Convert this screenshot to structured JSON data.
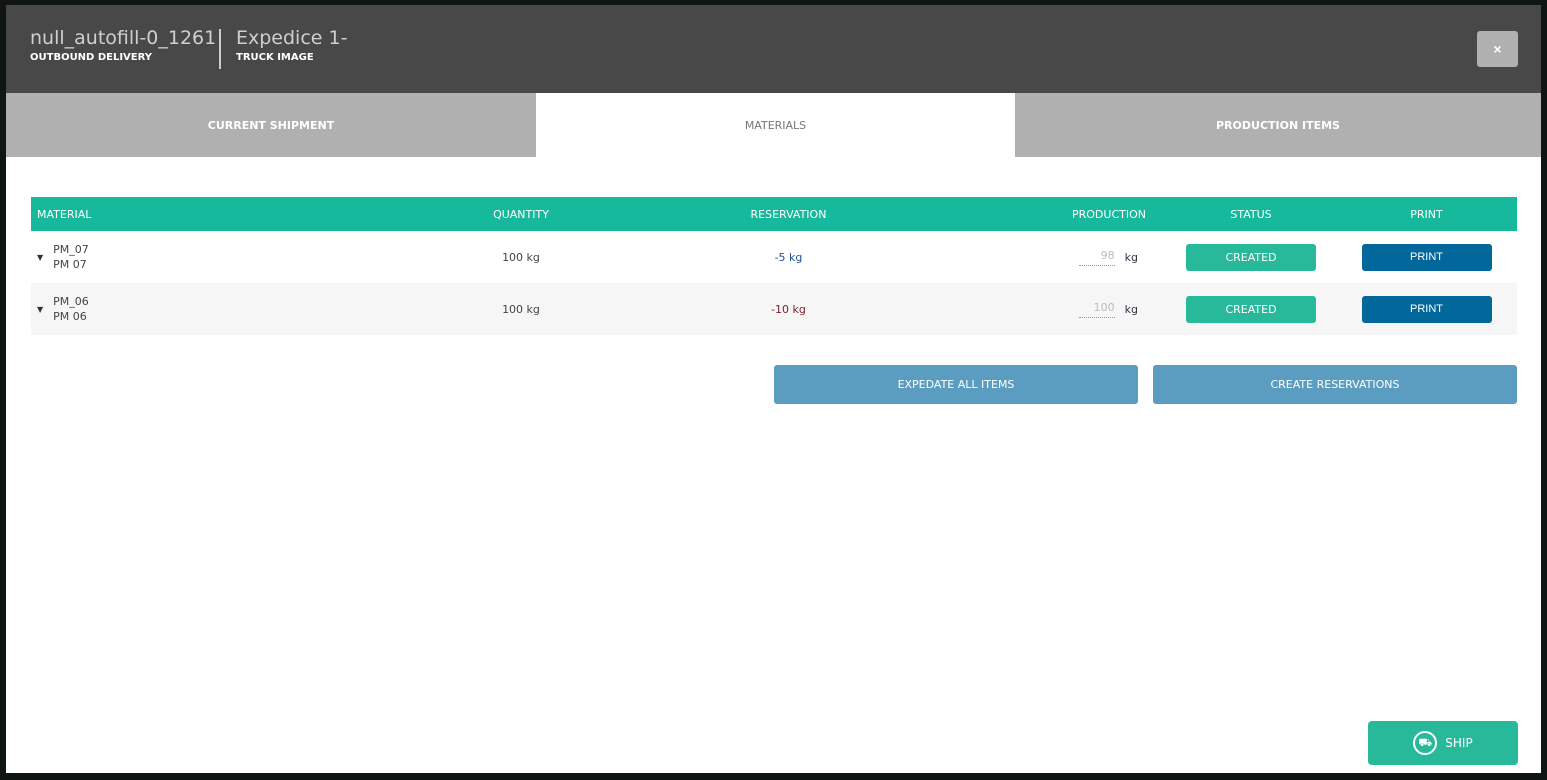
{
  "header": {
    "title": "null_autofill-0_1261",
    "subtitle": "OUTBOUND DELIVERY",
    "title2": "Expedice 1-",
    "subtitle2": "TRUCK IMAGE",
    "close_label": "×"
  },
  "tabs": [
    {
      "label": "CURRENT SHIPMENT"
    },
    {
      "label": "MATERIALS",
      "active": true
    },
    {
      "label": "PRODUCTION ITEMS"
    }
  ],
  "table": {
    "columns": [
      "MATERIAL",
      "QUANTITY",
      "RESERVATION",
      "PRODUCTION",
      "STATUS",
      "PRINT"
    ],
    "rows": [
      {
        "code": "PM_07",
        "name": "PM 07",
        "quantity": "100 kg",
        "reservation": "-5 kg",
        "reservation_color": "#1f4f9c",
        "production": "98",
        "unit": "kg",
        "status": "CREATED",
        "print": "PRINT"
      },
      {
        "code": "PM_06",
        "name": "PM 06",
        "quantity": "100 kg",
        "reservation": "-10 kg",
        "reservation_color": "#7a1f2b",
        "production": "100",
        "unit": "kg",
        "status": "CREATED",
        "print": "PRINT"
      }
    ]
  },
  "actions": {
    "expedate": "EXPEDATE ALL ITEMS",
    "reserve": "CREATE RESERVATIONS",
    "ship": "SHIP"
  },
  "colors": {
    "accent": "#17b99c",
    "print": "#02679b",
    "action": "#5b9dc0"
  }
}
